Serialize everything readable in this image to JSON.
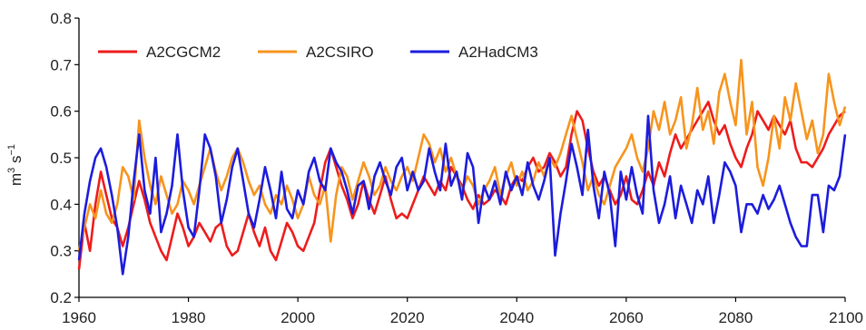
{
  "chart_data": {
    "type": "line",
    "title": "",
    "xlabel": "",
    "ylabel": "m3 s-1",
    "ylabel_parts": {
      "base1": "m",
      "sup1": "3",
      "base2": " s",
      "sup2": "−1"
    },
    "xlim": [
      1960,
      2100
    ],
    "ylim": [
      0.2,
      0.8
    ],
    "xticks": [
      1960,
      1980,
      2000,
      2020,
      2040,
      2060,
      2080,
      2100
    ],
    "xtick_labels": [
      "1960",
      "1980",
      "2000",
      "2020",
      "2040",
      "2060",
      "2080",
      "2100"
    ],
    "yticks": [
      0.2,
      0.3,
      0.4,
      0.5,
      0.6,
      0.7,
      0.8
    ],
    "ytick_labels": [
      "0.2",
      "0.3",
      "0.4",
      "0.5",
      "0.6",
      "0.7",
      "0.8"
    ],
    "grid": false,
    "legend_position": "top-left",
    "series": [
      {
        "name": "A2CGCM2",
        "color": "#ee1c1c",
        "x": [
          1960,
          1961,
          1962,
          1963,
          1964,
          1965,
          1966,
          1967,
          1968,
          1969,
          1970,
          1971,
          1972,
          1973,
          1974,
          1975,
          1976,
          1977,
          1978,
          1979,
          1980,
          1981,
          1982,
          1983,
          1984,
          1985,
          1986,
          1987,
          1988,
          1989,
          1990,
          1991,
          1992,
          1993,
          1994,
          1995,
          1996,
          1997,
          1998,
          1999,
          2000,
          2001,
          2002,
          2003,
          2004,
          2005,
          2006,
          2007,
          2008,
          2009,
          2010,
          2011,
          2012,
          2013,
          2014,
          2015,
          2016,
          2017,
          2018,
          2019,
          2020,
          2021,
          2022,
          2023,
          2024,
          2025,
          2026,
          2027,
          2028,
          2029,
          2030,
          2031,
          2032,
          2033,
          2034,
          2035,
          2036,
          2037,
          2038,
          2039,
          2040,
          2041,
          2042,
          2043,
          2044,
          2045,
          2046,
          2047,
          2048,
          2049,
          2050,
          2051,
          2052,
          2053,
          2054,
          2055,
          2056,
          2057,
          2058,
          2059,
          2060,
          2061,
          2062,
          2063,
          2064,
          2065,
          2066,
          2067,
          2068,
          2069,
          2070,
          2071,
          2072,
          2073,
          2074,
          2075,
          2076,
          2077,
          2078,
          2079,
          2080,
          2081,
          2082,
          2083,
          2084,
          2085,
          2086,
          2087,
          2088,
          2089,
          2090,
          2091,
          2092,
          2093,
          2094,
          2095,
          2096,
          2097,
          2098,
          2099,
          2100
        ],
        "values": [
          0.26,
          0.36,
          0.3,
          0.4,
          0.47,
          0.42,
          0.37,
          0.35,
          0.31,
          0.35,
          0.4,
          0.45,
          0.41,
          0.36,
          0.33,
          0.3,
          0.28,
          0.33,
          0.38,
          0.35,
          0.31,
          0.33,
          0.36,
          0.34,
          0.32,
          0.35,
          0.36,
          0.31,
          0.29,
          0.3,
          0.34,
          0.38,
          0.34,
          0.31,
          0.35,
          0.3,
          0.28,
          0.32,
          0.36,
          0.34,
          0.31,
          0.3,
          0.33,
          0.36,
          0.43,
          0.49,
          0.52,
          0.48,
          0.44,
          0.41,
          0.37,
          0.4,
          0.45,
          0.41,
          0.38,
          0.42,
          0.46,
          0.41,
          0.37,
          0.38,
          0.37,
          0.4,
          0.43,
          0.46,
          0.44,
          0.42,
          0.45,
          0.43,
          0.48,
          0.46,
          0.44,
          0.41,
          0.39,
          0.42,
          0.4,
          0.41,
          0.43,
          0.42,
          0.4,
          0.44,
          0.46,
          0.45,
          0.48,
          0.5,
          0.47,
          0.48,
          0.51,
          0.49,
          0.46,
          0.48,
          0.55,
          0.6,
          0.58,
          0.52,
          0.47,
          0.44,
          0.46,
          0.43,
          0.4,
          0.42,
          0.46,
          0.41,
          0.4,
          0.43,
          0.47,
          0.44,
          0.49,
          0.46,
          0.51,
          0.55,
          0.52,
          0.54,
          0.56,
          0.58,
          0.6,
          0.62,
          0.58,
          0.55,
          0.57,
          0.53,
          0.5,
          0.48,
          0.52,
          0.55,
          0.6,
          0.58,
          0.56,
          0.59,
          0.57,
          0.55,
          0.58,
          0.52,
          0.49,
          0.49,
          0.48,
          0.5,
          0.52,
          0.55,
          0.57,
          0.59,
          0.6
        ]
      },
      {
        "name": "A2CSIRO",
        "color": "#f7941d",
        "x": [
          1960,
          1961,
          1962,
          1963,
          1964,
          1965,
          1966,
          1967,
          1968,
          1969,
          1970,
          1971,
          1972,
          1973,
          1974,
          1975,
          1976,
          1977,
          1978,
          1979,
          1980,
          1981,
          1982,
          1983,
          1984,
          1985,
          1986,
          1987,
          1988,
          1989,
          1990,
          1991,
          1992,
          1993,
          1994,
          1995,
          1996,
          1997,
          1998,
          1999,
          2000,
          2001,
          2002,
          2003,
          2004,
          2005,
          2006,
          2007,
          2008,
          2009,
          2010,
          2011,
          2012,
          2013,
          2014,
          2015,
          2016,
          2017,
          2018,
          2019,
          2020,
          2021,
          2022,
          2023,
          2024,
          2025,
          2026,
          2027,
          2028,
          2029,
          2030,
          2031,
          2032,
          2033,
          2034,
          2035,
          2036,
          2037,
          2038,
          2039,
          2040,
          2041,
          2042,
          2043,
          2044,
          2045,
          2046,
          2047,
          2048,
          2049,
          2050,
          2051,
          2052,
          2053,
          2054,
          2055,
          2056,
          2057,
          2058,
          2059,
          2060,
          2061,
          2062,
          2063,
          2064,
          2065,
          2066,
          2067,
          2068,
          2069,
          2070,
          2071,
          2072,
          2073,
          2074,
          2075,
          2076,
          2077,
          2078,
          2079,
          2080,
          2081,
          2082,
          2083,
          2084,
          2085,
          2086,
          2087,
          2088,
          2089,
          2090,
          2091,
          2092,
          2093,
          2094,
          2095,
          2096,
          2097,
          2098,
          2099,
          2100
        ],
        "values": [
          0.3,
          0.35,
          0.4,
          0.37,
          0.43,
          0.38,
          0.36,
          0.4,
          0.48,
          0.46,
          0.41,
          0.58,
          0.5,
          0.44,
          0.4,
          0.46,
          0.42,
          0.38,
          0.4,
          0.45,
          0.43,
          0.4,
          0.44,
          0.48,
          0.52,
          0.47,
          0.43,
          0.46,
          0.5,
          0.52,
          0.49,
          0.45,
          0.42,
          0.44,
          0.4,
          0.38,
          0.42,
          0.4,
          0.44,
          0.41,
          0.37,
          0.4,
          0.46,
          0.42,
          0.4,
          0.44,
          0.32,
          0.42,
          0.48,
          0.46,
          0.41,
          0.45,
          0.49,
          0.46,
          0.42,
          0.44,
          0.48,
          0.45,
          0.43,
          0.46,
          0.48,
          0.45,
          0.5,
          0.55,
          0.53,
          0.49,
          0.52,
          0.47,
          0.5,
          0.46,
          0.43,
          0.46,
          0.44,
          0.4,
          0.43,
          0.45,
          0.48,
          0.42,
          0.46,
          0.49,
          0.44,
          0.47,
          0.43,
          0.45,
          0.49,
          0.46,
          0.5,
          0.48,
          0.51,
          0.55,
          0.59,
          0.54,
          0.49,
          0.43,
          0.46,
          0.42,
          0.4,
          0.44,
          0.48,
          0.5,
          0.52,
          0.55,
          0.5,
          0.47,
          0.52,
          0.6,
          0.56,
          0.62,
          0.55,
          0.58,
          0.63,
          0.52,
          0.57,
          0.65,
          0.56,
          0.6,
          0.53,
          0.64,
          0.68,
          0.62,
          0.57,
          0.71,
          0.55,
          0.62,
          0.48,
          0.44,
          0.5,
          0.59,
          0.52,
          0.63,
          0.58,
          0.66,
          0.6,
          0.54,
          0.58,
          0.51,
          0.55,
          0.68,
          0.62,
          0.57,
          0.61
        ]
      },
      {
        "name": "A2HadCM3",
        "color": "#1c1cdd",
        "x": [
          1960,
          1961,
          1962,
          1963,
          1964,
          1965,
          1966,
          1967,
          1968,
          1969,
          1970,
          1971,
          1972,
          1973,
          1974,
          1975,
          1976,
          1977,
          1978,
          1979,
          1980,
          1981,
          1982,
          1983,
          1984,
          1985,
          1986,
          1987,
          1988,
          1989,
          1990,
          1991,
          1992,
          1993,
          1994,
          1995,
          1996,
          1997,
          1998,
          1999,
          2000,
          2001,
          2002,
          2003,
          2004,
          2005,
          2006,
          2007,
          2008,
          2009,
          2010,
          2011,
          2012,
          2013,
          2014,
          2015,
          2016,
          2017,
          2018,
          2019,
          2020,
          2021,
          2022,
          2023,
          2024,
          2025,
          2026,
          2027,
          2028,
          2029,
          2030,
          2031,
          2032,
          2033,
          2034,
          2035,
          2036,
          2037,
          2038,
          2039,
          2040,
          2041,
          2042,
          2043,
          2044,
          2045,
          2046,
          2047,
          2048,
          2049,
          2050,
          2051,
          2052,
          2053,
          2054,
          2055,
          2056,
          2057,
          2058,
          2059,
          2060,
          2061,
          2062,
          2063,
          2064,
          2065,
          2066,
          2067,
          2068,
          2069,
          2070,
          2071,
          2072,
          2073,
          2074,
          2075,
          2076,
          2077,
          2078,
          2079,
          2080,
          2081,
          2082,
          2083,
          2084,
          2085,
          2086,
          2087,
          2088,
          2089,
          2090,
          2091,
          2092,
          2093,
          2094,
          2095,
          2096,
          2097,
          2098,
          2099,
          2100
        ],
        "values": [
          0.28,
          0.38,
          0.45,
          0.5,
          0.52,
          0.48,
          0.42,
          0.35,
          0.25,
          0.33,
          0.45,
          0.55,
          0.43,
          0.38,
          0.5,
          0.34,
          0.38,
          0.44,
          0.55,
          0.43,
          0.35,
          0.33,
          0.43,
          0.55,
          0.52,
          0.46,
          0.36,
          0.41,
          0.48,
          0.52,
          0.45,
          0.38,
          0.35,
          0.41,
          0.48,
          0.43,
          0.37,
          0.47,
          0.39,
          0.37,
          0.43,
          0.4,
          0.47,
          0.5,
          0.45,
          0.43,
          0.52,
          0.49,
          0.47,
          0.43,
          0.38,
          0.44,
          0.45,
          0.39,
          0.46,
          0.49,
          0.45,
          0.42,
          0.48,
          0.5,
          0.43,
          0.47,
          0.43,
          0.45,
          0.52,
          0.47,
          0.43,
          0.53,
          0.44,
          0.47,
          0.41,
          0.51,
          0.48,
          0.36,
          0.44,
          0.41,
          0.45,
          0.4,
          0.47,
          0.43,
          0.46,
          0.42,
          0.49,
          0.44,
          0.41,
          0.45,
          0.5,
          0.29,
          0.38,
          0.45,
          0.53,
          0.48,
          0.42,
          0.56,
          0.44,
          0.37,
          0.47,
          0.42,
          0.31,
          0.47,
          0.41,
          0.48,
          0.42,
          0.38,
          0.59,
          0.43,
          0.36,
          0.4,
          0.46,
          0.37,
          0.44,
          0.4,
          0.36,
          0.43,
          0.4,
          0.46,
          0.36,
          0.42,
          0.49,
          0.47,
          0.44,
          0.34,
          0.4,
          0.4,
          0.38,
          0.42,
          0.39,
          0.41,
          0.44,
          0.4,
          0.36,
          0.33,
          0.31,
          0.31,
          0.42,
          0.42,
          0.34,
          0.44,
          0.43,
          0.46,
          0.55
        ]
      }
    ]
  }
}
